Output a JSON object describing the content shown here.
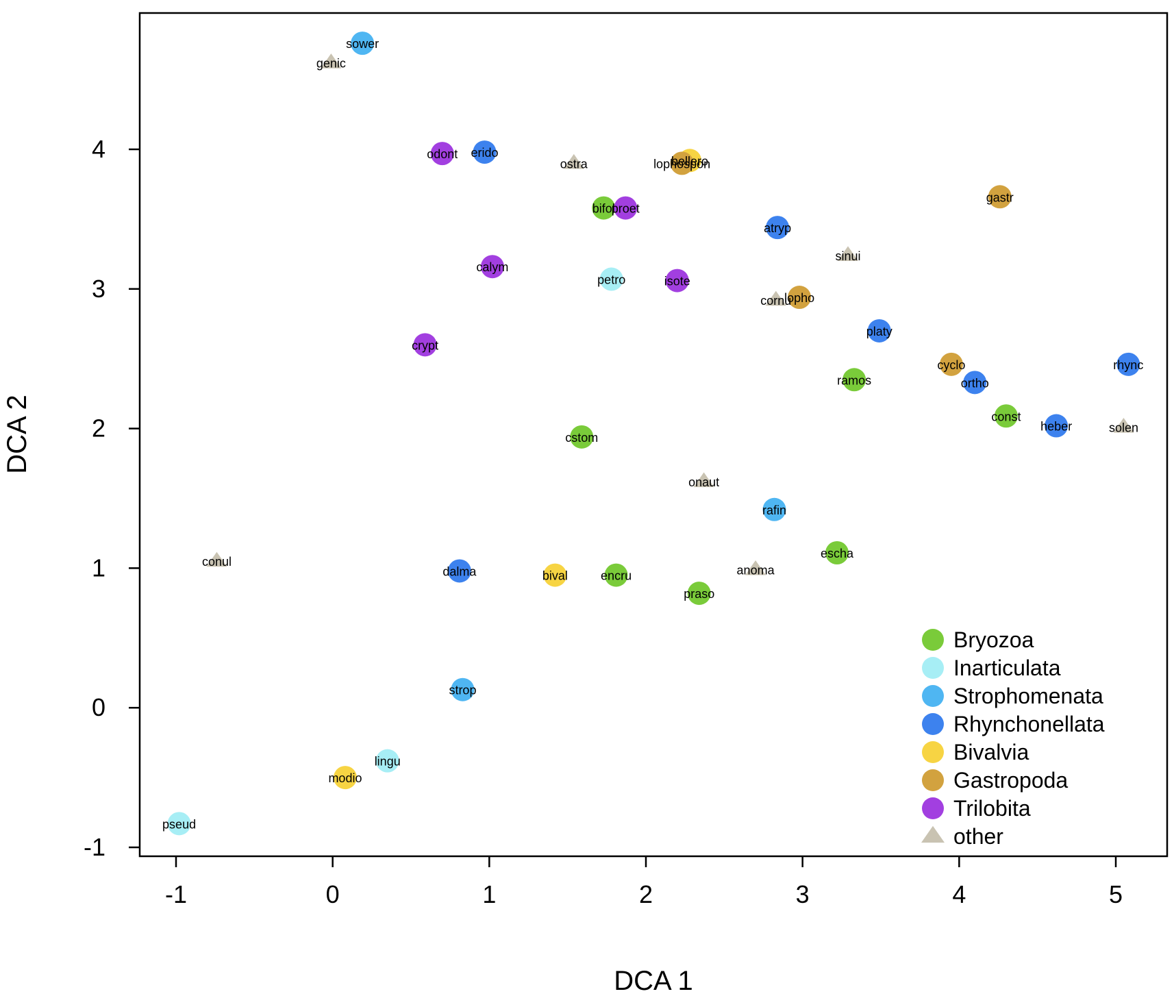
{
  "chart_data": {
    "type": "scatter",
    "title": "",
    "xlabel": "DCA 1",
    "ylabel": "DCA 2",
    "xlim": [
      -1.25,
      5.35
    ],
    "ylim": [
      -1.05,
      5.0
    ],
    "xticks": [
      -1,
      0,
      1,
      2,
      3,
      4,
      5
    ],
    "yticks": [
      -1,
      0,
      1,
      2,
      3,
      4
    ],
    "grid": false,
    "legend_position": "bottom-right",
    "groups": [
      {
        "name": "Bryozoa",
        "color": "#7ACB3A",
        "marker": "circle"
      },
      {
        "name": "Inarticulata",
        "color": "#A7EEF5",
        "marker": "circle"
      },
      {
        "name": "Strophomenata",
        "color": "#4FB6F2",
        "marker": "circle"
      },
      {
        "name": "Rhynchonellata",
        "color": "#3D82EE",
        "marker": "circle"
      },
      {
        "name": "Bivalvia",
        "color": "#F7D443",
        "marker": "circle"
      },
      {
        "name": "Gastropoda",
        "color": "#D2A23F",
        "marker": "circle"
      },
      {
        "name": "Trilobita",
        "color": "#A23FE0",
        "marker": "circle"
      },
      {
        "name": "other",
        "color": "#C9C3B2",
        "marker": "triangle"
      }
    ],
    "points": [
      {
        "label": "sower",
        "group": "Strophomenata",
        "x": 0.19,
        "y": 4.76
      },
      {
        "label": "genic",
        "group": "other",
        "x": -0.01,
        "y": 4.62
      },
      {
        "label": "odont",
        "group": "Trilobita",
        "x": 0.7,
        "y": 3.97
      },
      {
        "label": "erido",
        "group": "Rhynchonellata",
        "x": 0.97,
        "y": 3.98
      },
      {
        "label": "ostra",
        "group": "other",
        "x": 1.54,
        "y": 3.9
      },
      {
        "label": "bellero",
        "group": "Bivalvia",
        "x": 2.28,
        "y": 3.92
      },
      {
        "label": "lophospon",
        "group": "Gastropoda",
        "x": 2.23,
        "y": 3.9
      },
      {
        "label": "bifol",
        "group": "Bryozoa",
        "x": 1.73,
        "y": 3.58
      },
      {
        "label": "proet",
        "group": "Trilobita",
        "x": 1.87,
        "y": 3.58
      },
      {
        "label": "atryp",
        "group": "Rhynchonellata",
        "x": 2.84,
        "y": 3.44
      },
      {
        "label": "gastr",
        "group": "Gastropoda",
        "x": 4.26,
        "y": 3.66
      },
      {
        "label": "sinui",
        "group": "other",
        "x": 3.29,
        "y": 3.24
      },
      {
        "label": "calym",
        "group": "Trilobita",
        "x": 1.02,
        "y": 3.16
      },
      {
        "label": "petro",
        "group": "Inarticulata",
        "x": 1.78,
        "y": 3.07
      },
      {
        "label": "isote",
        "group": "Trilobita",
        "x": 2.2,
        "y": 3.06
      },
      {
        "label": "cornu",
        "group": "other",
        "x": 2.83,
        "y": 2.92
      },
      {
        "label": "lopho",
        "group": "Gastropoda",
        "x": 2.98,
        "y": 2.94
      },
      {
        "label": "platy",
        "group": "Rhynchonellata",
        "x": 3.49,
        "y": 2.7
      },
      {
        "label": "crypt",
        "group": "Trilobita",
        "x": 0.59,
        "y": 2.6
      },
      {
        "label": "cyclo",
        "group": "Gastropoda",
        "x": 3.95,
        "y": 2.46
      },
      {
        "label": "rhync",
        "group": "Rhynchonellata",
        "x": 5.08,
        "y": 2.46
      },
      {
        "label": "ramos",
        "group": "Bryozoa",
        "x": 3.33,
        "y": 2.35
      },
      {
        "label": "ortho",
        "group": "Rhynchonellata",
        "x": 4.1,
        "y": 2.33
      },
      {
        "label": "const",
        "group": "Bryozoa",
        "x": 4.3,
        "y": 2.09
      },
      {
        "label": "heber",
        "group": "Rhynchonellata",
        "x": 4.62,
        "y": 2.02
      },
      {
        "label": "solen",
        "group": "other",
        "x": 5.05,
        "y": 2.01
      },
      {
        "label": "cstom",
        "group": "Bryozoa",
        "x": 1.59,
        "y": 1.94
      },
      {
        "label": "onaut",
        "group": "other",
        "x": 2.37,
        "y": 1.62
      },
      {
        "label": "rafin",
        "group": "Strophomenata",
        "x": 2.82,
        "y": 1.42
      },
      {
        "label": "conul",
        "group": "other",
        "x": -0.74,
        "y": 1.05
      },
      {
        "label": "escha",
        "group": "Bryozoa",
        "x": 3.22,
        "y": 1.11
      },
      {
        "label": "dalma",
        "group": "Rhynchonellata",
        "x": 0.81,
        "y": 0.98
      },
      {
        "label": "bival",
        "group": "Bivalvia",
        "x": 1.42,
        "y": 0.95
      },
      {
        "label": "encru",
        "group": "Bryozoa",
        "x": 1.81,
        "y": 0.95
      },
      {
        "label": "anoma",
        "group": "other",
        "x": 2.7,
        "y": 0.99
      },
      {
        "label": "praso",
        "group": "Bryozoa",
        "x": 2.34,
        "y": 0.82
      },
      {
        "label": "strop",
        "group": "Strophomenata",
        "x": 0.83,
        "y": 0.13
      },
      {
        "label": "lingu",
        "group": "Inarticulata",
        "x": 0.35,
        "y": -0.38
      },
      {
        "label": "modio",
        "group": "Bivalvia",
        "x": 0.08,
        "y": -0.5
      },
      {
        "label": "pseud",
        "group": "Inarticulata",
        "x": -0.98,
        "y": -0.83
      }
    ]
  }
}
